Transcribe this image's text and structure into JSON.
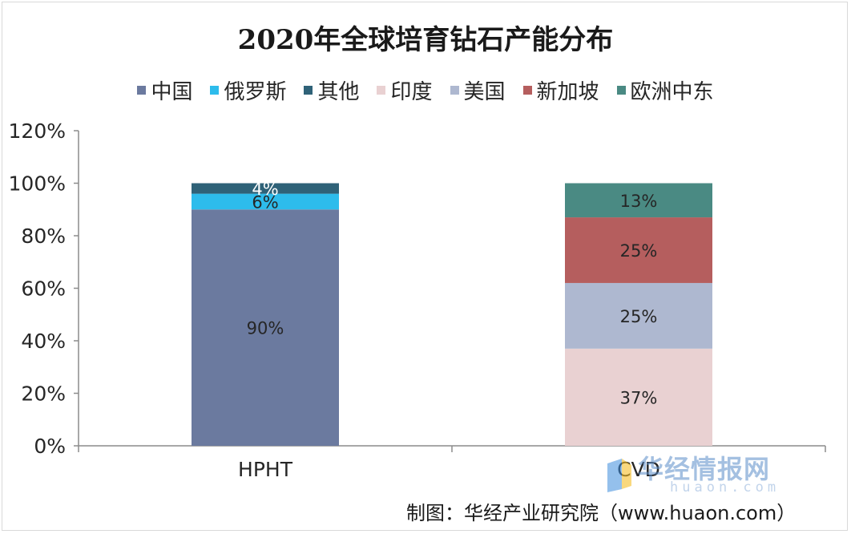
{
  "chart_data": {
    "type": "bar",
    "stacked": true,
    "title": "2020年全球培育钻石产能分布",
    "categories": [
      "HPHT",
      "CVD"
    ],
    "series": [
      {
        "name": "中国",
        "color": "#6b7a9f",
        "values": [
          90,
          0
        ],
        "labels": [
          "90%",
          ""
        ]
      },
      {
        "name": "俄罗斯",
        "color": "#2dbcec",
        "values": [
          6,
          0
        ],
        "labels": [
          "6%",
          ""
        ]
      },
      {
        "name": "其他",
        "color": "#2f6278",
        "values": [
          4,
          0
        ],
        "labels": [
          "4%",
          ""
        ]
      },
      {
        "name": "印度",
        "color": "#e9d1d2",
        "values": [
          0,
          37
        ],
        "labels": [
          "",
          "37%"
        ]
      },
      {
        "name": "美国",
        "color": "#aeb8d0",
        "values": [
          0,
          25
        ],
        "labels": [
          "",
          "25%"
        ]
      },
      {
        "name": "新加坡",
        "color": "#b55e5e",
        "values": [
          0,
          25
        ],
        "labels": [
          "",
          "25%"
        ]
      },
      {
        "name": "欧洲中东",
        "color": "#4a8a83",
        "values": [
          0,
          13
        ],
        "labels": [
          "",
          "13%"
        ]
      }
    ],
    "ylim": [
      0,
      120
    ],
    "yticks": [
      0,
      20,
      40,
      60,
      80,
      100,
      120
    ],
    "ytick_labels": [
      "0%",
      "20%",
      "40%",
      "60%",
      "80%",
      "100%",
      "120%"
    ],
    "grid": false,
    "legend_position": "top"
  },
  "footer": {
    "credit": "制图：华经产业研究院（www.huaon.com）",
    "watermark": "华经情报网",
    "watermark_sub": "huaon.com"
  }
}
